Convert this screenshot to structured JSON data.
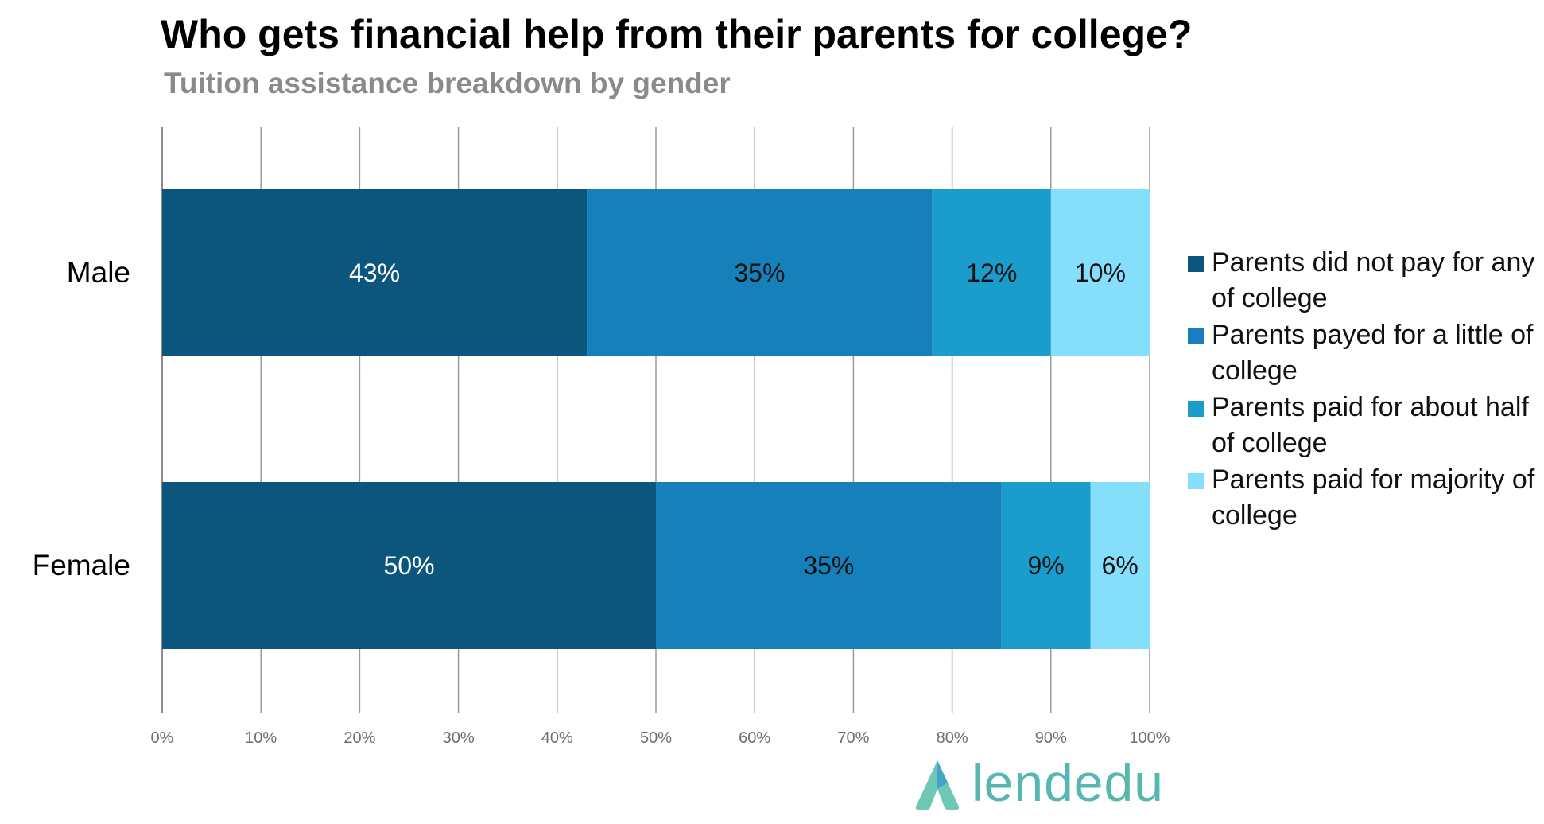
{
  "chart_data": {
    "type": "bar",
    "orientation": "horizontal",
    "stacked": true,
    "title": "Who gets financial help from their parents for college?",
    "subtitle": "Tuition assistance breakdown by gender",
    "categories": [
      "Male",
      "Female"
    ],
    "series": [
      {
        "name": "Parents did not pay for any of college",
        "color": "#0c557c",
        "label_color": "#ffffff",
        "values": [
          43,
          50
        ],
        "labels": [
          "43%",
          "50%"
        ]
      },
      {
        "name": "Parents payed for a little of college",
        "color": "#1680bb",
        "label_color": "#111111",
        "values": [
          35,
          35
        ],
        "labels": [
          "35%",
          "35%"
        ]
      },
      {
        "name": "Parents paid for about half of college",
        "color": "#1a9dcd",
        "label_color": "#111111",
        "values": [
          12,
          9
        ],
        "labels": [
          "12%",
          "9%"
        ]
      },
      {
        "name": "Parents paid for majority of college",
        "color": "#85defc",
        "label_color": "#111111",
        "values": [
          10,
          6
        ],
        "labels": [
          "10%",
          "6%"
        ]
      }
    ],
    "xlim": [
      0,
      100
    ],
    "x_ticks": [
      "0%",
      "10%",
      "20%",
      "30%",
      "40%",
      "50%",
      "60%",
      "70%",
      "80%",
      "90%",
      "100%"
    ],
    "grid": true,
    "legend_position": "right"
  },
  "brand": {
    "name": "lendedu",
    "color": "#56b7b0"
  }
}
